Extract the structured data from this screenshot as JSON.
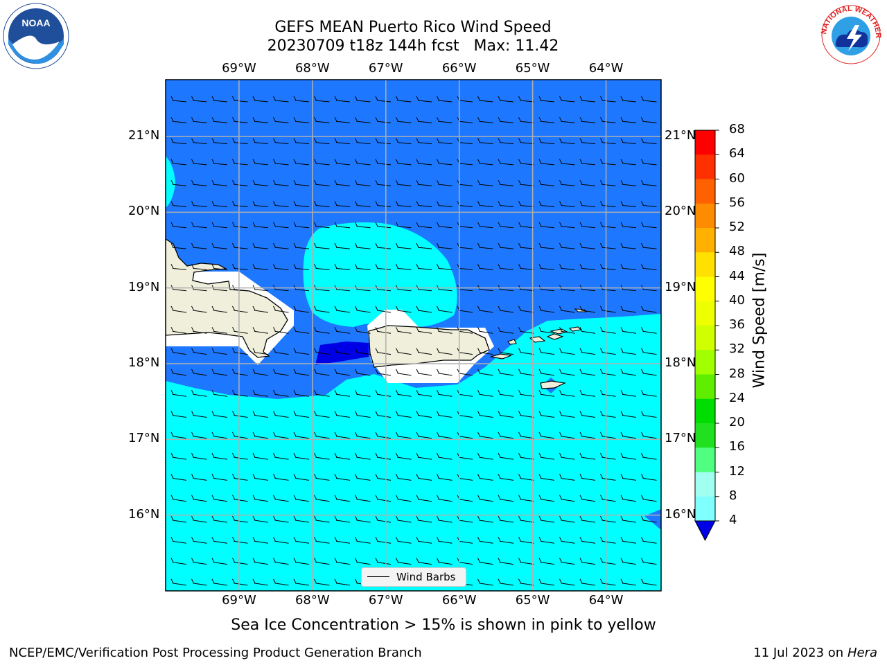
{
  "header": {
    "title": "GEFS MEAN Puerto Rico Wind Speed",
    "subtitle": "20230709 t18z 144h fcst   Max: 11.42"
  },
  "axes": {
    "lon_labels": [
      "69°W",
      "68°W",
      "67°W",
      "66°W",
      "65°W",
      "64°W"
    ],
    "lat_labels": [
      "21°N",
      "20°N",
      "19°N",
      "18°N",
      "17°N",
      "16°N"
    ],
    "lon_range": [
      -70.0,
      -63.25
    ],
    "lat_range": [
      15.0,
      21.75
    ]
  },
  "colorbar": {
    "label": "Wind Speed [m/s]",
    "ticks": [
      "68",
      "64",
      "60",
      "56",
      "52",
      "48",
      "44",
      "40",
      "36",
      "32",
      "28",
      "24",
      "20",
      "16",
      "12",
      "8",
      "4"
    ],
    "colors": [
      "#0000e6",
      "#1e78ff",
      "#00ffff",
      "#40ffff",
      "#80ffff",
      "#a0fff0",
      "#50ff80",
      "#20e020",
      "#00dd00",
      "#60ee00",
      "#a0ff00",
      "#d0ff00",
      "#eeff00",
      "#ffff00",
      "#ffe000",
      "#ffb000",
      "#ff8c00",
      "#ff6000",
      "#ff3000",
      "#ff0000"
    ]
  },
  "legend": {
    "label": "Wind Barbs"
  },
  "note": "Sea Ice Concentration > 15% is shown in pink to yellow",
  "footer": {
    "left": "NCEP/EMC/Verification Post Processing Product Generation Branch",
    "right_prefix": "11 Jul 2023 on ",
    "right_host": "Hera"
  },
  "logos": {
    "noaa": "NOAA",
    "nws": "NATIONAL WEATHER SERVICE"
  }
}
